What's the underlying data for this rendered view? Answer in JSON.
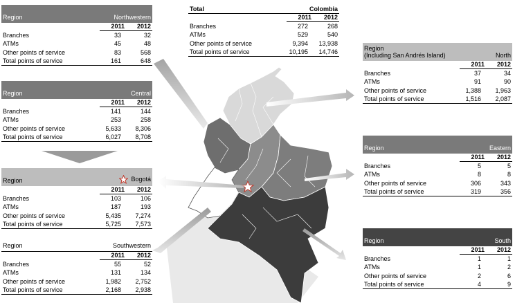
{
  "row_labels": [
    "Branches",
    "ATMs",
    "Other points of service",
    "Total points of service"
  ],
  "years": [
    "2011",
    "2012"
  ],
  "colombia": {
    "title_left": "Total",
    "title_right": "Colombia",
    "rows": [
      [
        "272",
        "268"
      ],
      [
        "529",
        "540"
      ],
      [
        "9,394",
        "13,938"
      ],
      [
        "10,195",
        "14,746"
      ]
    ]
  },
  "northwestern": {
    "title_left": "Region",
    "title_right": "Northwestern",
    "rows": [
      [
        "33",
        "32"
      ],
      [
        "45",
        "48"
      ],
      [
        "83",
        "568"
      ],
      [
        "161",
        "648"
      ]
    ]
  },
  "central": {
    "title_left": "Region",
    "title_right": "Central",
    "rows": [
      [
        "141",
        "144"
      ],
      [
        "253",
        "258"
      ],
      [
        "5,633",
        "8,306"
      ],
      [
        "6,027",
        "8,708"
      ]
    ]
  },
  "bogota": {
    "title_left": "Region",
    "title_right": "Bogotá",
    "rows": [
      [
        "103",
        "106"
      ],
      [
        "187",
        "193"
      ],
      [
        "5,435",
        "7,274"
      ],
      [
        "5,725",
        "7,573"
      ]
    ]
  },
  "southwestern": {
    "title_left": "Region",
    "title_right": "Southwestern",
    "rows": [
      [
        "55",
        "52"
      ],
      [
        "131",
        "134"
      ],
      [
        "1,982",
        "2,752"
      ],
      [
        "2,168",
        "2,938"
      ]
    ]
  },
  "north": {
    "title_left": "Region",
    "title_left2": "(Including San Andrés Island)",
    "title_right": "North",
    "rows": [
      [
        "37",
        "34"
      ],
      [
        "91",
        "90"
      ],
      [
        "1,388",
        "1,963"
      ],
      [
        "1,516",
        "2,087"
      ]
    ]
  },
  "eastern": {
    "title_left": "Region",
    "title_right": "Eastern",
    "rows": [
      [
        "5",
        "5"
      ],
      [
        "8",
        "8"
      ],
      [
        "306",
        "343"
      ],
      [
        "319",
        "356"
      ]
    ]
  },
  "south": {
    "title_left": "Region",
    "title_right": "South",
    "rows": [
      [
        "1",
        "1"
      ],
      [
        "1",
        "2"
      ],
      [
        "2",
        "6"
      ],
      [
        "4",
        "9"
      ]
    ]
  },
  "colors": {
    "header_mid": "#7a7a7a",
    "header_dark": "#444444",
    "header_light": "#bdbdbd",
    "map_north": "#d9d9d9",
    "map_northwest": "#6e6e6e",
    "map_central": "#8c8c8c",
    "map_east": "#7d7d7d",
    "map_south": "#3c3c3c",
    "map_southwest": "#ffffff",
    "star": "#c0392b"
  }
}
